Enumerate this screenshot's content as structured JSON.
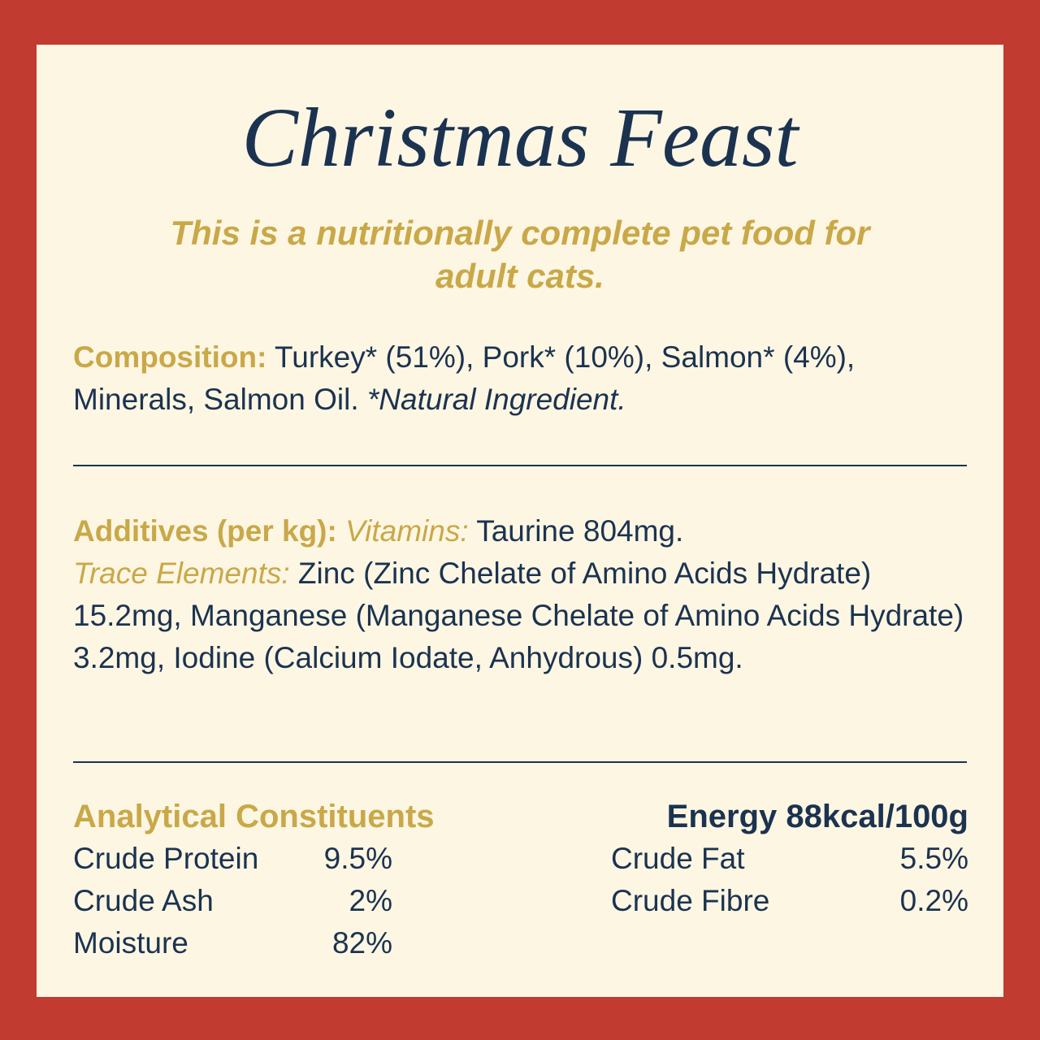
{
  "title": "Christmas Feast",
  "subtitle": "This is a nutritionally complete pet food for adult cats.",
  "composition": {
    "label": "Composition:",
    "text": "Turkey* (51%), Pork* (10%), Salmon* (4%), Minerals, Salmon Oil.",
    "note": "*Natural Ingredient."
  },
  "additives": {
    "label": "Additives (per kg):",
    "vitamins_label": "Vitamins:",
    "vitamins": "Taurine 804mg.",
    "trace_label": "Trace Elements:",
    "trace": "Zinc (Zinc Chelate of Amino Acids Hydrate) 15.2mg, Manganese (Manganese Chelate of Amino Acids Hydrate) 3.2mg, Iodine (Calcium Iodate, Anhydrous) 0.5mg."
  },
  "analytical": {
    "title": "Analytical Constituents",
    "energy": "Energy 88kcal/100g",
    "left": [
      {
        "name": "Crude Protein",
        "value": "9.5%"
      },
      {
        "name": "Crude Ash",
        "value": "2%"
      },
      {
        "name": "Moisture",
        "value": "82%"
      }
    ],
    "right": [
      {
        "name": "Crude Fat",
        "value": "5.5%"
      },
      {
        "name": "Crude Fibre",
        "value": "0.2%"
      }
    ]
  }
}
